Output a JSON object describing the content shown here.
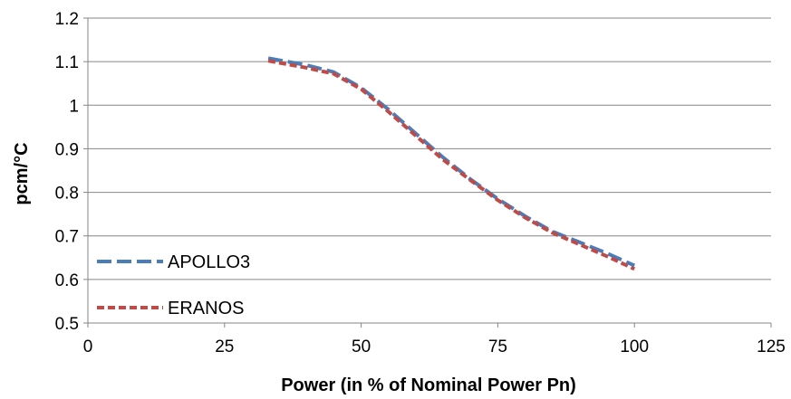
{
  "chart_data": {
    "type": "line",
    "title": "",
    "xlabel": "Power (in % of Nominal Power Pn)",
    "ylabel": "pcm/°C",
    "xlim": [
      0,
      125
    ],
    "ylim": [
      0.5,
      1.2
    ],
    "xticks": [
      0,
      25,
      50,
      75,
      100,
      125
    ],
    "yticks": [
      0.5,
      0.6,
      0.7,
      0.8,
      0.9,
      1,
      1.1,
      1.2
    ],
    "xtick_labels": [
      "0",
      "25",
      "50",
      "75",
      "100",
      "125"
    ],
    "ytick_labels": [
      "0.5",
      "0.6",
      "0.7",
      "0.8",
      "0.9",
      "1",
      "1.1",
      "1.2"
    ],
    "grid": "horizontal",
    "legend_position": "bottom-left",
    "series": [
      {
        "name": "APOLLO3",
        "color": "#4a7ebb",
        "dash": "long-dash",
        "x": [
          33,
          40,
          45,
          50,
          55,
          60,
          65,
          70,
          75,
          80,
          85,
          90,
          95,
          100
        ],
        "y": [
          1.108,
          1.092,
          1.076,
          1.04,
          0.99,
          0.935,
          0.88,
          0.83,
          0.785,
          0.745,
          0.71,
          0.685,
          0.66,
          0.632
        ]
      },
      {
        "name": "ERANOS",
        "color": "#be4b48",
        "dash": "short-dash",
        "x": [
          33,
          40,
          45,
          50,
          55,
          60,
          65,
          70,
          75,
          80,
          85,
          90,
          95,
          100
        ],
        "y": [
          1.102,
          1.086,
          1.072,
          1.037,
          0.985,
          0.93,
          0.875,
          0.828,
          0.782,
          0.742,
          0.707,
          0.68,
          0.653,
          0.624
        ]
      }
    ]
  }
}
